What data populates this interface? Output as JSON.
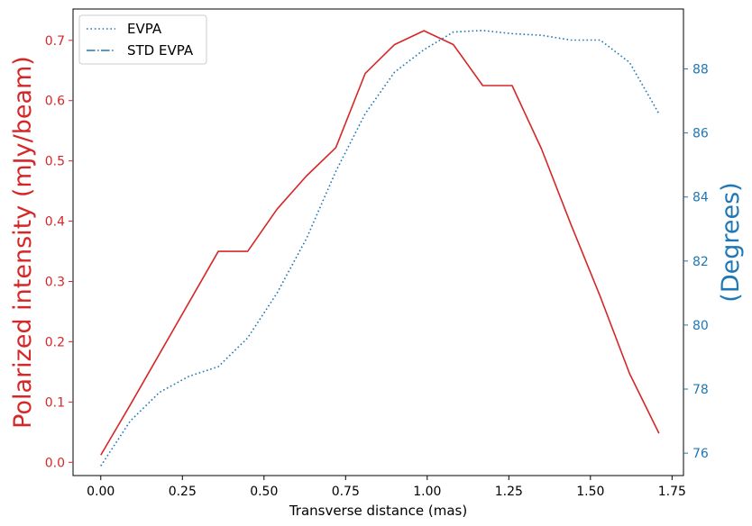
{
  "chart_data": {
    "type": "line",
    "xlabel": "Transverse distance (mas)",
    "ylabel_left": "Polarized intensity (mJy/beam)",
    "ylabel_right": "(Degrees)",
    "xlim": [
      -0.085,
      1.785
    ],
    "ylim_left": [
      -0.022,
      0.752
    ],
    "ylim_right": [
      75.3,
      89.87
    ],
    "x_ticks": [
      0.0,
      0.25,
      0.5,
      0.75,
      1.0,
      1.25,
      1.5,
      1.75
    ],
    "x_tick_labels": [
      "0.00",
      "0.25",
      "0.50",
      "0.75",
      "1.00",
      "1.25",
      "1.50",
      "1.75"
    ],
    "y_left_ticks": [
      0.0,
      0.1,
      0.2,
      0.3,
      0.4,
      0.5,
      0.6,
      0.7
    ],
    "y_left_tick_labels": [
      "0.0",
      "0.1",
      "0.2",
      "0.3",
      "0.4",
      "0.5",
      "0.6",
      "0.7"
    ],
    "y_right_ticks": [
      76,
      78,
      80,
      82,
      84,
      86,
      88
    ],
    "y_right_tick_labels": [
      "76",
      "78",
      "80",
      "82",
      "84",
      "86",
      "88"
    ],
    "grid": false,
    "legend_position": "top-left",
    "colors": {
      "intensity": "#d62728",
      "evpa": "#1f77b4",
      "left_axis": "#d62728",
      "right_axis": "#1f77b4"
    },
    "series": [
      {
        "axis": "left",
        "style": "solid",
        "x": [
          0.0,
          0.09,
          0.18,
          0.27,
          0.36,
          0.45,
          0.54,
          0.63,
          0.72,
          0.81,
          0.9,
          0.99,
          1.08,
          1.17,
          1.26,
          1.35,
          1.44,
          1.53,
          1.62,
          1.71
        ],
        "values": [
          0.012,
          0.095,
          0.18,
          0.265,
          0.35,
          0.35,
          0.42,
          0.475,
          0.522,
          0.645,
          0.693,
          0.716,
          0.693,
          0.625,
          0.625,
          0.52,
          0.395,
          0.275,
          0.147,
          0.048
        ]
      },
      {
        "name": "EVPA",
        "axis": "right",
        "style": "dotted",
        "x": [
          0.0,
          0.09,
          0.18,
          0.27,
          0.36,
          0.45,
          0.54,
          0.63,
          0.72,
          0.81,
          0.9,
          0.99,
          1.08,
          1.17,
          1.26,
          1.35,
          1.44,
          1.53,
          1.62,
          1.71
        ],
        "values": [
          75.6,
          77.0,
          77.9,
          78.4,
          78.7,
          79.6,
          81.0,
          82.7,
          84.8,
          86.6,
          87.9,
          88.6,
          89.15,
          89.2,
          89.1,
          89.05,
          88.9,
          88.9,
          88.2,
          86.6
        ]
      },
      {
        "name": "STD EVPA",
        "axis": "right",
        "style": "dashdot",
        "x": [],
        "values": []
      }
    ]
  }
}
